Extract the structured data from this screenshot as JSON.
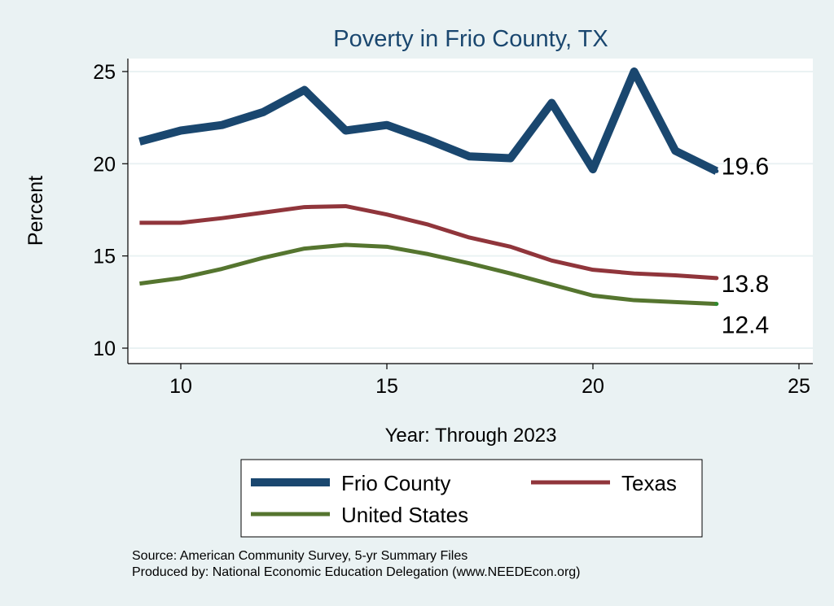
{
  "chart_data": {
    "type": "line",
    "title": "Poverty in Frio County, TX",
    "xlabel": "Year: Through 2023",
    "ylabel": "Percent",
    "xlim": [
      8.7,
      25.3
    ],
    "ylim": [
      9.2,
      25.7
    ],
    "xticks": [
      10,
      15,
      20,
      25
    ],
    "yticks": [
      10,
      15,
      20,
      25
    ],
    "grid": true,
    "legend_position": "bottom",
    "x": [
      9,
      10,
      11,
      12,
      13,
      14,
      15,
      16,
      17,
      18,
      19,
      20,
      21,
      22,
      23
    ],
    "series": [
      {
        "name": "Frio County",
        "color": "#1a476f",
        "end_label": "19.6",
        "values": [
          21.2,
          21.8,
          22.1,
          22.8,
          24.0,
          21.8,
          22.1,
          21.3,
          20.4,
          20.3,
          23.3,
          19.7,
          25.0,
          20.7,
          19.6
        ]
      },
      {
        "name": "Texas",
        "color": "#90353b",
        "end_label": "13.8",
        "values": [
          16.8,
          16.8,
          17.05,
          17.35,
          17.65,
          17.7,
          17.25,
          16.7,
          16.0,
          15.5,
          14.75,
          14.25,
          14.05,
          13.95,
          13.8
        ]
      },
      {
        "name": "United States",
        "color": "#55752f",
        "end_label": "12.4",
        "values": [
          13.5,
          13.8,
          14.3,
          14.9,
          15.4,
          15.6,
          15.5,
          15.1,
          14.6,
          14.05,
          13.45,
          12.85,
          12.6,
          12.5,
          12.4
        ]
      }
    ],
    "notes": [
      "Source: American Community Survey, 5-yr Summary Files",
      "Produced by: National Economic Education Delegation (www.NEEDEcon.org)"
    ]
  }
}
